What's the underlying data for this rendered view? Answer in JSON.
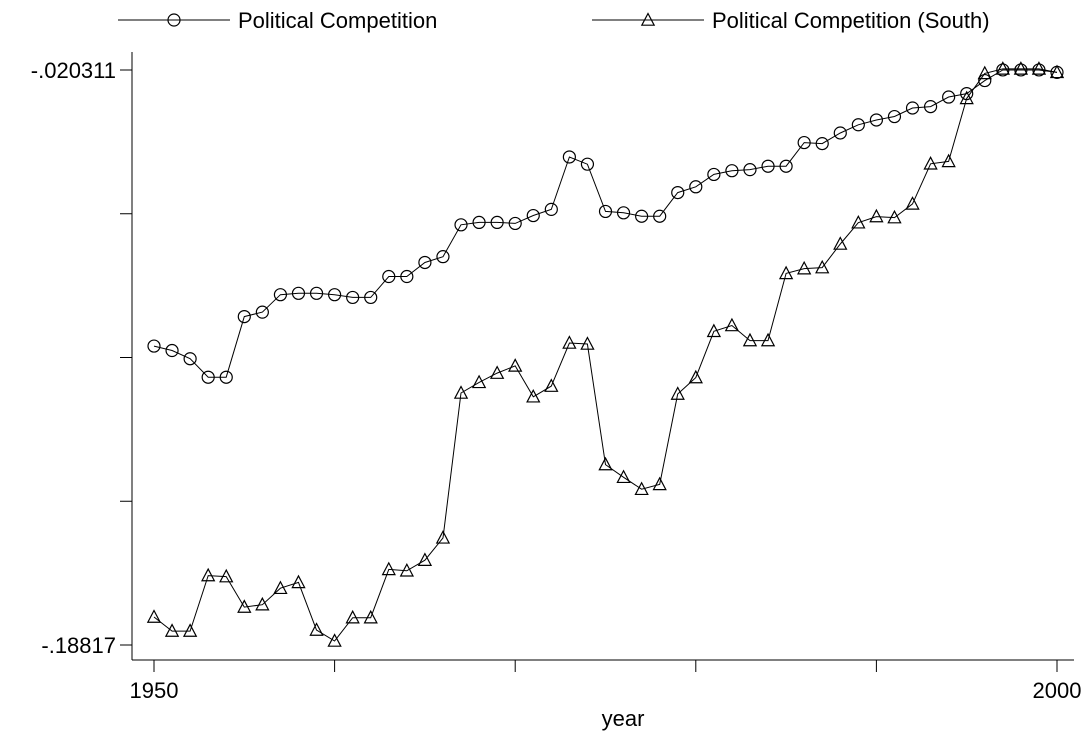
{
  "chart_data": {
    "type": "line",
    "xlabel": "year",
    "ylabel": "",
    "x_ticks": [
      1950,
      2000
    ],
    "y_ticks": [
      -0.020311,
      -0.18817
    ],
    "x_tick_labels": [
      "1950",
      "2000"
    ],
    "y_tick_labels": [
      "-.020311",
      "-.18817"
    ],
    "xlim": [
      1950,
      2000
    ],
    "ylim": [
      -0.18817,
      -0.020311
    ],
    "grid": false,
    "legend": "top",
    "series": [
      {
        "name": "Political Competition",
        "marker": "circle",
        "x": [
          1950,
          1951,
          1952,
          1953,
          1954,
          1955,
          1956,
          1957,
          1958,
          1959,
          1960,
          1961,
          1962,
          1963,
          1964,
          1965,
          1966,
          1967,
          1968,
          1969,
          1970,
          1971,
          1972,
          1973,
          1974,
          1975,
          1976,
          1977,
          1978,
          1979,
          1980,
          1981,
          1982,
          1983,
          1984,
          1985,
          1986,
          1987,
          1988,
          1989,
          1990,
          1991,
          1992,
          1993,
          1994,
          1995,
          1996,
          1997,
          1998,
          1999,
          2000
        ],
        "values": [
          -0.1009,
          -0.1022,
          -0.1046,
          -0.11,
          -0.11,
          -0.0923,
          -0.091,
          -0.0859,
          -0.0855,
          -0.0855,
          -0.0859,
          -0.0867,
          -0.0867,
          -0.0806,
          -0.0806,
          -0.0765,
          -0.0748,
          -0.0655,
          -0.0648,
          -0.0648,
          -0.0651,
          -0.0628,
          -0.061,
          -0.0457,
          -0.0478,
          -0.0616,
          -0.062,
          -0.063,
          -0.063,
          -0.0561,
          -0.0544,
          -0.0508,
          -0.0497,
          -0.0494,
          -0.0484,
          -0.0484,
          -0.0415,
          -0.0418,
          -0.0387,
          -0.0363,
          -0.0349,
          -0.0339,
          -0.0314,
          -0.031,
          -0.0282,
          -0.0272,
          -0.0234,
          -0.0203,
          -0.0203,
          -0.0203,
          -0.021
        ]
      },
      {
        "name": "Political Competition (South)",
        "marker": "triangle",
        "x": [
          1950,
          1951,
          1952,
          1953,
          1954,
          1955,
          1956,
          1957,
          1958,
          1959,
          1960,
          1961,
          1962,
          1963,
          1964,
          1965,
          1966,
          1967,
          1968,
          1969,
          1970,
          1971,
          1972,
          1973,
          1974,
          1975,
          1976,
          1977,
          1978,
          1979,
          1980,
          1981,
          1982,
          1983,
          1984,
          1985,
          1986,
          1987,
          1988,
          1989,
          1990,
          1991,
          1992,
          1993,
          1994,
          1995,
          1996,
          1997,
          1998,
          1999,
          2000
        ],
        "values": [
          -0.18,
          -0.1841,
          -0.1841,
          -0.1679,
          -0.1682,
          -0.1771,
          -0.1764,
          -0.1716,
          -0.1699,
          -0.1838,
          -0.187,
          -0.1802,
          -0.1802,
          -0.1661,
          -0.1665,
          -0.1634,
          -0.1569,
          -0.1146,
          -0.1115,
          -0.1088,
          -0.1067,
          -0.1157,
          -0.1126,
          -0.1,
          -0.1003,
          -0.1355,
          -0.1392,
          -0.1427,
          -0.1413,
          -0.1149,
          -0.1101,
          -0.0966,
          -0.0949,
          -0.0993,
          -0.0993,
          -0.0797,
          -0.0783,
          -0.078,
          -0.0711,
          -0.0649,
          -0.0631,
          -0.0634,
          -0.0594,
          -0.0477,
          -0.047,
          -0.0286,
          -0.0213,
          -0.02,
          -0.02,
          -0.02,
          -0.021
        ]
      }
    ]
  }
}
